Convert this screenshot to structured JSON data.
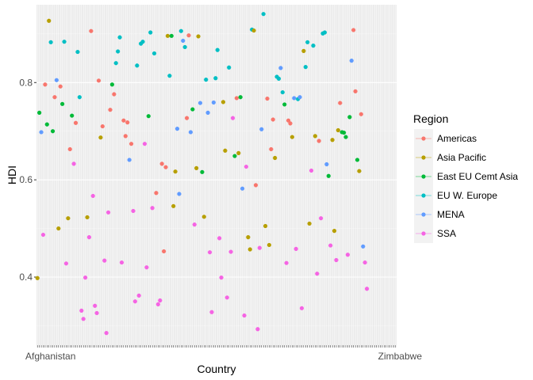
{
  "chart_data": {
    "type": "scatter",
    "xlabel": "Country",
    "ylabel": "HDI",
    "ylim": [
      0.26,
      0.96
    ],
    "y_ticks": [
      0.4,
      0.6,
      0.8
    ],
    "grid": true,
    "legend": {
      "title": "Region",
      "placement": "right",
      "entries": [
        {
          "name": "Americas",
          "color": "#F8766D"
        },
        {
          "name": "Asia Pacific",
          "color": "#B79F00"
        },
        {
          "name": "East EU Cemt Asia",
          "color": "#00BA38"
        },
        {
          "name": "EU W. Europe",
          "color": "#00BFC4"
        },
        {
          "name": "MENA",
          "color": "#619CFF"
        },
        {
          "name": "SSA",
          "color": "#F564E3"
        }
      ]
    },
    "x_tick_first": "Afghanistan",
    "x_tick_last": "Zimbabwe",
    "x_count": 188,
    "points": [
      [
        1,
        0.398,
        "Asia Pacific"
      ],
      [
        2,
        0.738,
        "East EU Cemt Asia"
      ],
      [
        3,
        0.698,
        "MENA"
      ],
      [
        4,
        0.487,
        "SSA"
      ],
      [
        5,
        0.796,
        "Americas"
      ],
      [
        6,
        0.714,
        "East EU Cemt Asia"
      ],
      [
        7,
        0.927,
        "Asia Pacific"
      ],
      [
        8,
        0.883,
        "EU W. Europe"
      ],
      [
        9,
        0.7,
        "East EU Cemt Asia"
      ],
      [
        10,
        0.77,
        "Americas"
      ],
      [
        11,
        0.805,
        "MENA"
      ],
      [
        12,
        0.5,
        "Asia Pacific"
      ],
      [
        13,
        0.792,
        "Americas"
      ],
      [
        14,
        0.756,
        "East EU Cemt Asia"
      ],
      [
        15,
        0.884,
        "EU W. Europe"
      ],
      [
        16,
        0.428,
        "SSA"
      ],
      [
        17,
        0.521,
        "Asia Pacific"
      ],
      [
        18,
        0.663,
        "Americas"
      ],
      [
        19,
        0.732,
        "East EU Cemt Asia"
      ],
      [
        20,
        0.633,
        "SSA"
      ],
      [
        21,
        0.717,
        "Americas"
      ],
      [
        22,
        0.863,
        "EU W. Europe"
      ],
      [
        23,
        0.77,
        "EU W. Europe"
      ],
      [
        24,
        0.331,
        "SSA"
      ],
      [
        25,
        0.314,
        "SSA"
      ],
      [
        26,
        0.399,
        "SSA"
      ],
      [
        27,
        0.523,
        "Asia Pacific"
      ],
      [
        28,
        0.482,
        "SSA"
      ],
      [
        29,
        0.906,
        "Americas"
      ],
      [
        30,
        0.567,
        "SSA"
      ],
      [
        31,
        0.341,
        "SSA"
      ],
      [
        32,
        0.326,
        "SSA"
      ],
      [
        33,
        0.804,
        "Americas"
      ],
      [
        34,
        0.687,
        "Asia Pacific"
      ],
      [
        35,
        0.71,
        "Americas"
      ],
      [
        36,
        0.434,
        "SSA"
      ],
      [
        37,
        0.285,
        "SSA"
      ],
      [
        38,
        0.533,
        "SSA"
      ],
      [
        39,
        0.744,
        "Americas"
      ],
      [
        40,
        0.796,
        "East EU Cemt Asia"
      ],
      [
        41,
        0.776,
        "Americas"
      ],
      [
        42,
        0.84,
        "EU W. Europe"
      ],
      [
        43,
        0.864,
        "EU W. Europe"
      ],
      [
        44,
        0.893,
        "EU W. Europe"
      ],
      [
        45,
        0.43,
        "SSA"
      ],
      [
        46,
        0.722,
        "Americas"
      ],
      [
        47,
        0.69,
        "Americas"
      ],
      [
        48,
        0.718,
        "Americas"
      ],
      [
        49,
        0.641,
        "MENA"
      ],
      [
        50,
        0.674,
        "Americas"
      ],
      [
        51,
        0.536,
        "SSA"
      ],
      [
        52,
        0.35,
        "SSA"
      ],
      [
        53,
        0.835,
        "EU W. Europe"
      ],
      [
        54,
        0.362,
        "SSA"
      ],
      [
        55,
        0.88,
        "EU W. Europe"
      ],
      [
        56,
        0.884,
        "EU W. Europe"
      ],
      [
        57,
        0.674,
        "SSA"
      ],
      [
        58,
        0.42,
        "SSA"
      ],
      [
        59,
        0.731,
        "East EU Cemt Asia"
      ],
      [
        60,
        0.903,
        "EU W. Europe"
      ],
      [
        61,
        0.542,
        "SSA"
      ],
      [
        62,
        0.86,
        "EU W. Europe"
      ],
      [
        63,
        0.573,
        "Americas"
      ],
      [
        64,
        0.344,
        "SSA"
      ],
      [
        65,
        0.352,
        "SSA"
      ],
      [
        66,
        0.633,
        "Americas"
      ],
      [
        67,
        0.453,
        "Americas"
      ],
      [
        68,
        0.626,
        "Americas"
      ],
      [
        69,
        0.896,
        "Asia Pacific"
      ],
      [
        70,
        0.814,
        "EU W. Europe"
      ],
      [
        71,
        0.896,
        "East EU Cemt Asia"
      ],
      [
        72,
        0.546,
        "Asia Pacific"
      ],
      [
        73,
        0.617,
        "Asia Pacific"
      ],
      [
        74,
        0.705,
        "MENA"
      ],
      [
        75,
        0.571,
        "MENA"
      ],
      [
        76,
        0.906,
        "EU W. Europe"
      ],
      [
        77,
        0.886,
        "MENA"
      ],
      [
        78,
        0.873,
        "EU W. Europe"
      ],
      [
        79,
        0.727,
        "Americas"
      ],
      [
        80,
        0.897,
        "Americas"
      ],
      [
        81,
        0.698,
        "MENA"
      ],
      [
        82,
        0.745,
        "East EU Cemt Asia"
      ],
      [
        83,
        0.508,
        "SSA"
      ],
      [
        84,
        0.624,
        "Asia Pacific"
      ],
      [
        85,
        0.895,
        "Asia Pacific"
      ],
      [
        86,
        0.758,
        "MENA"
      ],
      [
        87,
        0.616,
        "East EU Cemt Asia"
      ],
      [
        88,
        0.524,
        "Asia Pacific"
      ],
      [
        89,
        0.806,
        "EU W. Europe"
      ],
      [
        90,
        0.738,
        "MENA"
      ],
      [
        91,
        0.451,
        "SSA"
      ],
      [
        92,
        0.328,
        "SSA"
      ],
      [
        93,
        0.759,
        "MENA"
      ],
      [
        94,
        0.809,
        "EU W. Europe"
      ],
      [
        95,
        0.867,
        "EU W. Europe"
      ],
      [
        96,
        0.48,
        "SSA"
      ],
      [
        97,
        0.399,
        "SSA"
      ],
      [
        98,
        0.76,
        "Asia Pacific"
      ],
      [
        99,
        0.66,
        "Asia Pacific"
      ],
      [
        100,
        0.358,
        "SSA"
      ],
      [
        101,
        0.831,
        "EU W. Europe"
      ],
      [
        102,
        0.452,
        "SSA"
      ],
      [
        103,
        0.727,
        "SSA"
      ],
      [
        104,
        0.649,
        "East EU Cemt Asia"
      ],
      [
        105,
        0.768,
        "Americas"
      ],
      [
        106,
        0.655,
        "Asia Pacific"
      ],
      [
        107,
        0.77,
        "East EU Cemt Asia"
      ],
      [
        108,
        0.582,
        "MENA"
      ],
      [
        109,
        0.321,
        "SSA"
      ],
      [
        110,
        0.627,
        "SSA"
      ],
      [
        111,
        0.482,
        "Asia Pacific"
      ],
      [
        112,
        0.457,
        "Asia Pacific"
      ],
      [
        113,
        0.909,
        "EU W. Europe"
      ],
      [
        114,
        0.907,
        "Asia Pacific"
      ],
      [
        115,
        0.589,
        "Americas"
      ],
      [
        116,
        0.293,
        "SSA"
      ],
      [
        117,
        0.46,
        "SSA"
      ],
      [
        118,
        0.704,
        "MENA"
      ],
      [
        119,
        0.941,
        "EU W. Europe"
      ],
      [
        120,
        0.505,
        "Asia Pacific"
      ],
      [
        121,
        0.767,
        "Americas"
      ],
      [
        122,
        0.466,
        "Asia Pacific"
      ],
      [
        123,
        0.663,
        "Americas"
      ],
      [
        124,
        0.724,
        "Americas"
      ],
      [
        125,
        0.645,
        "Asia Pacific"
      ],
      [
        126,
        0.812,
        "EU W. Europe"
      ],
      [
        127,
        0.808,
        "EU W. Europe"
      ],
      [
        128,
        0.83,
        "MENA"
      ],
      [
        129,
        0.78,
        "EU W. Europe"
      ],
      [
        130,
        0.755,
        "East EU Cemt Asia"
      ],
      [
        131,
        0.429,
        "SSA"
      ],
      [
        132,
        0.722,
        "Americas"
      ],
      [
        133,
        0.716,
        "Americas"
      ],
      [
        134,
        0.688,
        "Asia Pacific"
      ],
      [
        135,
        0.768,
        "MENA"
      ],
      [
        136,
        0.458,
        "SSA"
      ],
      [
        137,
        0.766,
        "EU W. Europe"
      ],
      [
        138,
        0.77,
        "MENA"
      ],
      [
        139,
        0.336,
        "SSA"
      ],
      [
        140,
        0.865,
        "Asia Pacific"
      ],
      [
        141,
        0.832,
        "EU W. Europe"
      ],
      [
        142,
        0.883,
        "EU W. Europe"
      ],
      [
        143,
        0.51,
        "Asia Pacific"
      ],
      [
        144,
        0.619,
        "SSA"
      ],
      [
        145,
        0.876,
        "EU W. Europe"
      ],
      [
        146,
        0.69,
        "Asia Pacific"
      ],
      [
        147,
        0.407,
        "SSA"
      ],
      [
        148,
        0.68,
        "Americas"
      ],
      [
        149,
        0.521,
        "SSA"
      ],
      [
        150,
        0.901,
        "EU W. Europe"
      ],
      [
        151,
        0.903,
        "EU W. Europe"
      ],
      [
        152,
        0.632,
        "MENA"
      ],
      [
        153,
        0.608,
        "East EU Cemt Asia"
      ],
      [
        154,
        0.465,
        "SSA"
      ],
      [
        155,
        0.682,
        "Asia Pacific"
      ],
      [
        156,
        0.495,
        "Asia Pacific"
      ],
      [
        157,
        0.435,
        "SSA"
      ],
      [
        158,
        0.702,
        "Asia Pacific"
      ],
      [
        159,
        0.758,
        "Americas"
      ],
      [
        160,
        0.698,
        "East EU Cemt Asia"
      ],
      [
        161,
        0.697,
        "East EU Cemt Asia"
      ],
      [
        162,
        0.688,
        "East EU Cemt Asia"
      ],
      [
        163,
        0.446,
        "SSA"
      ],
      [
        164,
        0.729,
        "East EU Cemt Asia"
      ],
      [
        165,
        0.845,
        "MENA"
      ],
      [
        166,
        0.908,
        "Americas"
      ],
      [
        167,
        0.782,
        "Americas"
      ],
      [
        168,
        0.641,
        "East EU Cemt Asia"
      ],
      [
        169,
        0.618,
        "Asia Pacific"
      ],
      [
        170,
        0.735,
        "Americas"
      ],
      [
        171,
        0.463,
        "MENA"
      ],
      [
        172,
        0.43,
        "SSA"
      ],
      [
        173,
        0.376,
        "SSA"
      ]
    ]
  }
}
